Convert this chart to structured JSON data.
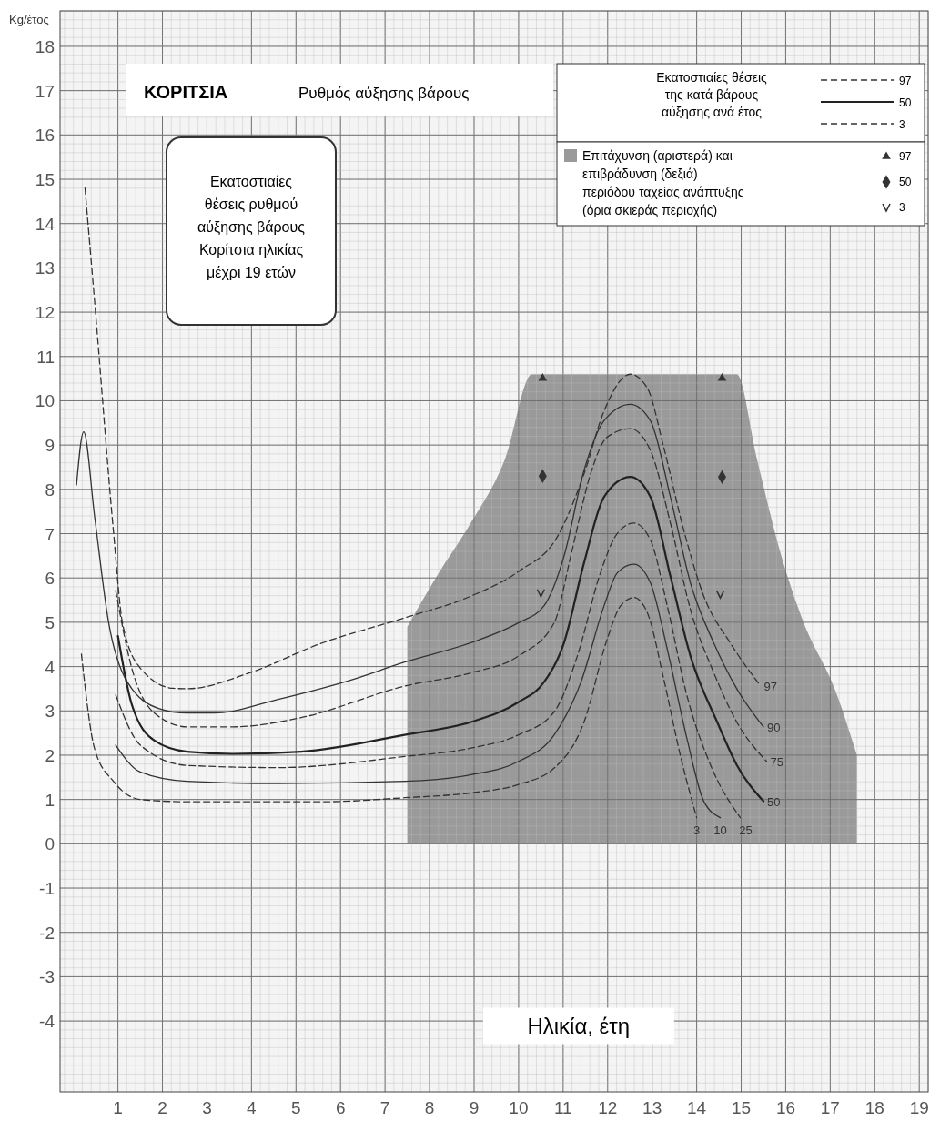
{
  "chart_data": {
    "type": "line",
    "title": "ΚΟΡΙΤΣΙΑ",
    "subtitle": "Ρυθμός αύξησης βάρους",
    "xlabel": "Ηλικία, έτη",
    "ylabel": "Kg/έτος",
    "legend_title": "Εκατοστιαίες θέσεις της κατά βάρους αύξησης ανά έτος",
    "xlim": [
      -0.3,
      19.2
    ],
    "ylim": [
      -5.6,
      18.8
    ],
    "xticks": [
      1,
      2,
      3,
      4,
      5,
      6,
      7,
      8,
      9,
      10,
      11,
      12,
      13,
      14,
      15,
      16,
      17,
      18,
      19
    ],
    "yticks": [
      -4,
      -3,
      -2,
      -1,
      0,
      1,
      2,
      3,
      4,
      5,
      6,
      7,
      8,
      9,
      10,
      11,
      12,
      13,
      14,
      15,
      16,
      17,
      18
    ],
    "grid": true,
    "legend": "top right",
    "series": [
      {
        "name": "Επιτάχυνση (αριστερά) και επιβράδυνση (δεξιά) περιόδου ταχείας ανάπτυξης (όρια σκιεράς περιοχής)",
        "type": "area",
        "color": "#9a9a9a",
        "x": [
          7.5,
          8.2,
          8.9,
          9.7,
          10.3,
          12.5,
          14.9,
          15.35,
          15.9,
          16.4,
          17.1,
          17.6
        ],
        "values": [
          4.9,
          6.1,
          7.2,
          8.7,
          10.6,
          10.6,
          10.6,
          8.7,
          6.5,
          5.0,
          3.5,
          2.0
        ]
      },
      {
        "name": "97",
        "type": "scatter",
        "marker": "triangle",
        "color": "#333333",
        "x": [
          10.54,
          14.57
        ],
        "values": [
          10.51,
          10.51
        ]
      },
      {
        "name": "50",
        "type": "scatter",
        "marker": "diamond",
        "color": "#333333",
        "x": [
          10.54,
          14.57
        ],
        "values": [
          8.3,
          8.28
        ]
      },
      {
        "name": "3",
        "type": "scatter",
        "marker": "cross",
        "color": "#333333",
        "x": [
          10.5,
          14.53
        ],
        "values": [
          5.66,
          5.63
        ]
      },
      {
        "name": "97",
        "color": "#333333",
        "line_style": "dashed",
        "x": [
          0.26,
          0.48,
          0.9,
          1.1,
          1.5,
          2.24,
          2.55,
          3.99,
          5.5,
          7.44,
          8.93,
          10.0,
          10.87,
          11.47,
          11.92,
          12.51,
          12.89,
          13.26,
          13.71,
          14.16,
          14.75,
          15.43
        ],
        "values": [
          14.8,
          12.2,
          7.05,
          5.0,
          3.97,
          3.51,
          3.5,
          3.87,
          4.5,
          5.1,
          5.59,
          6.15,
          6.93,
          8.35,
          9.77,
          10.6,
          10.29,
          8.95,
          7.08,
          5.59,
          4.54,
          3.57
        ]
      },
      {
        "name": "90",
        "color": "#333333",
        "line_style": "solid",
        "x": [
          0.07,
          0.23,
          0.48,
          0.79,
          1.2,
          1.93,
          2.55,
          3.16,
          4.6,
          6.15,
          7.44,
          8.93,
          10.0,
          10.57,
          11.02,
          11.47,
          11.92,
          12.51,
          12.96,
          13.41,
          13.86,
          14.38,
          14.9,
          15.5
        ],
        "values": [
          8.1,
          9.3,
          7.36,
          5.0,
          3.67,
          3.05,
          2.95,
          2.95,
          3.26,
          3.67,
          4.1,
          4.54,
          4.99,
          5.37,
          6.49,
          8.43,
          9.55,
          9.92,
          9.55,
          7.83,
          5.89,
          4.54,
          3.5,
          2.64
        ]
      },
      {
        "name": "75",
        "color": "#333333",
        "line_style": "dashed",
        "x": [
          0.95,
          1.31,
          1.82,
          2.55,
          3.58,
          5.12,
          7.44,
          8.93,
          10.0,
          10.8,
          11.17,
          11.62,
          11.99,
          12.51,
          12.96,
          13.41,
          13.86,
          14.38,
          14.9,
          15.57
        ],
        "values": [
          5.72,
          3.97,
          2.95,
          2.64,
          2.64,
          2.85,
          3.56,
          3.86,
          4.24,
          4.99,
          6.49,
          8.36,
          9.18,
          9.37,
          8.88,
          7.24,
          5.29,
          3.87,
          2.75,
          1.86
        ]
      },
      {
        "name": "50",
        "color": "#222222",
        "line_style": "solid",
        "x": [
          1.0,
          1.31,
          1.82,
          2.55,
          3.58,
          5.12,
          7.44,
          8.93,
          10.0,
          10.57,
          11.02,
          11.47,
          11.92,
          12.51,
          12.96,
          13.41,
          13.86,
          14.46,
          14.9,
          15.5
        ],
        "values": [
          4.69,
          3.15,
          2.33,
          2.08,
          2.03,
          2.08,
          2.46,
          2.75,
          3.2,
          3.65,
          4.54,
          6.34,
          7.83,
          8.28,
          7.83,
          6.04,
          4.24,
          2.75,
          1.78,
          0.96
        ]
      },
      {
        "name": "25",
        "color": "#333333",
        "line_style": "dashed",
        "x": [
          0.95,
          1.5,
          2.55,
          4.6,
          7.44,
          8.93,
          10.0,
          10.8,
          11.32,
          11.84,
          12.22,
          12.59,
          12.96,
          13.34,
          13.78,
          14.31,
          14.98
        ],
        "values": [
          3.36,
          2.23,
          1.77,
          1.72,
          1.97,
          2.16,
          2.46,
          2.98,
          4.24,
          6.12,
          7.01,
          7.24,
          6.86,
          5.37,
          3.35,
          1.78,
          0.59
        ]
      },
      {
        "name": "10",
        "color": "#333333",
        "line_style": "solid",
        "x": [
          0.95,
          1.5,
          2.55,
          4.6,
          7.44,
          8.93,
          10.0,
          10.8,
          11.4,
          11.92,
          12.22,
          12.59,
          12.96,
          13.34,
          13.78,
          14.16,
          14.53
        ],
        "values": [
          2.23,
          1.62,
          1.41,
          1.36,
          1.41,
          1.56,
          1.86,
          2.46,
          3.65,
          5.37,
          6.12,
          6.31,
          5.89,
          4.39,
          2.38,
          0.96,
          0.59
        ]
      },
      {
        "name": "3",
        "color": "#333333",
        "line_style": "dashed",
        "x": [
          0.18,
          0.48,
          0.9,
          1.5,
          2.55,
          5.64,
          7.44,
          8.93,
          10.0,
          10.8,
          11.47,
          11.99,
          12.29,
          12.59,
          12.89,
          13.26,
          13.63,
          14.0
        ],
        "values": [
          4.28,
          2.13,
          1.41,
          1.0,
          0.95,
          0.95,
          1.04,
          1.15,
          1.34,
          1.71,
          2.75,
          4.62,
          5.37,
          5.56,
          5.22,
          3.72,
          2.01,
          0.59
        ]
      }
    ],
    "annotations": [
      "Εκατοστιαίες θέσεις ρυθμού αύξησης βάρους Κορίτσια ηλικίας μέχρι 19 ετών"
    ]
  }
}
